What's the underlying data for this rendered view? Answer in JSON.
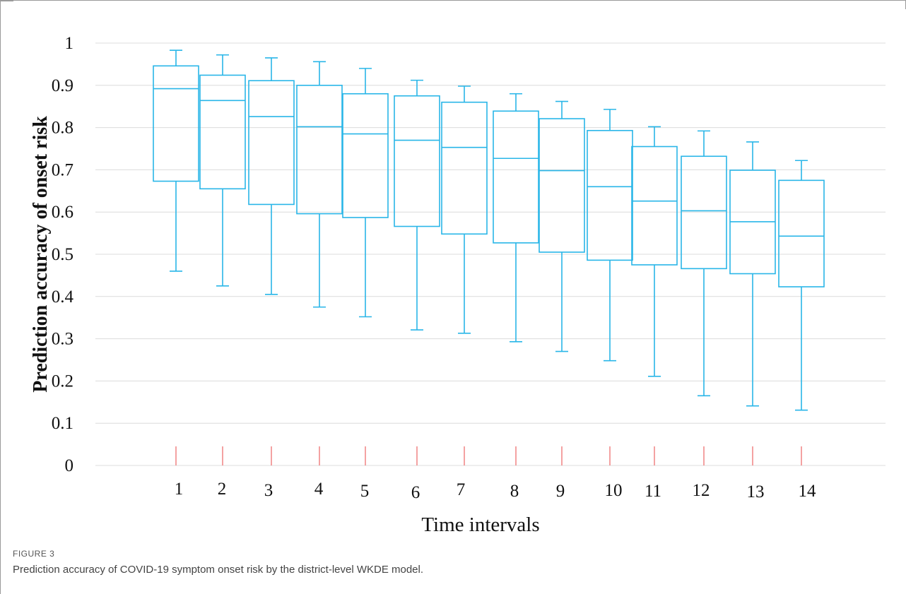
{
  "figure": {
    "label": "FIGURE 3",
    "caption": "Prediction accuracy of COVID-19 symptom onset risk by the district-level WKDE model."
  },
  "chart_data": {
    "type": "box",
    "xlabel": "Time intervals",
    "ylabel": "Prediction accuracy of onset risk",
    "ylim": [
      0,
      1
    ],
    "yticks": [
      "0",
      "0.1",
      "0.2",
      "0.3",
      "0.4",
      "0.5",
      "0.6",
      "0.7",
      "0.8",
      "0.9",
      "1"
    ],
    "grid": "horizontal",
    "colors": {
      "box": "#29b6e8",
      "marker": "#f07a7a",
      "grid": "#dcdcdc"
    },
    "categories": [
      "1",
      "2",
      "3",
      "4",
      "5",
      "6",
      "7",
      "8",
      "9",
      "10",
      "11",
      "12",
      "13",
      "14"
    ],
    "boxes": [
      {
        "min": 0.46,
        "q1": 0.673,
        "median": 0.892,
        "q3": 0.946,
        "max": 0.983
      },
      {
        "min": 0.425,
        "q1": 0.655,
        "median": 0.864,
        "q3": 0.924,
        "max": 0.972
      },
      {
        "min": 0.405,
        "q1": 0.618,
        "median": 0.826,
        "q3": 0.911,
        "max": 0.965
      },
      {
        "min": 0.375,
        "q1": 0.596,
        "median": 0.802,
        "q3": 0.9,
        "max": 0.956
      },
      {
        "min": 0.352,
        "q1": 0.587,
        "median": 0.785,
        "q3": 0.88,
        "max": 0.94
      },
      {
        "min": 0.321,
        "q1": 0.566,
        "median": 0.77,
        "q3": 0.875,
        "max": 0.912
      },
      {
        "min": 0.313,
        "q1": 0.548,
        "median": 0.753,
        "q3": 0.86,
        "max": 0.898
      },
      {
        "min": 0.293,
        "q1": 0.527,
        "median": 0.727,
        "q3": 0.839,
        "max": 0.88
      },
      {
        "min": 0.27,
        "q1": 0.505,
        "median": 0.698,
        "q3": 0.821,
        "max": 0.862
      },
      {
        "min": 0.248,
        "q1": 0.486,
        "median": 0.66,
        "q3": 0.793,
        "max": 0.843
      },
      {
        "min": 0.211,
        "q1": 0.475,
        "median": 0.626,
        "q3": 0.755,
        "max": 0.802
      },
      {
        "min": 0.165,
        "q1": 0.466,
        "median": 0.603,
        "q3": 0.732,
        "max": 0.792
      },
      {
        "min": 0.141,
        "q1": 0.454,
        "median": 0.577,
        "q3": 0.699,
        "max": 0.766
      },
      {
        "min": 0.131,
        "q1": 0.423,
        "median": 0.543,
        "q3": 0.675,
        "max": 0.722
      }
    ]
  }
}
